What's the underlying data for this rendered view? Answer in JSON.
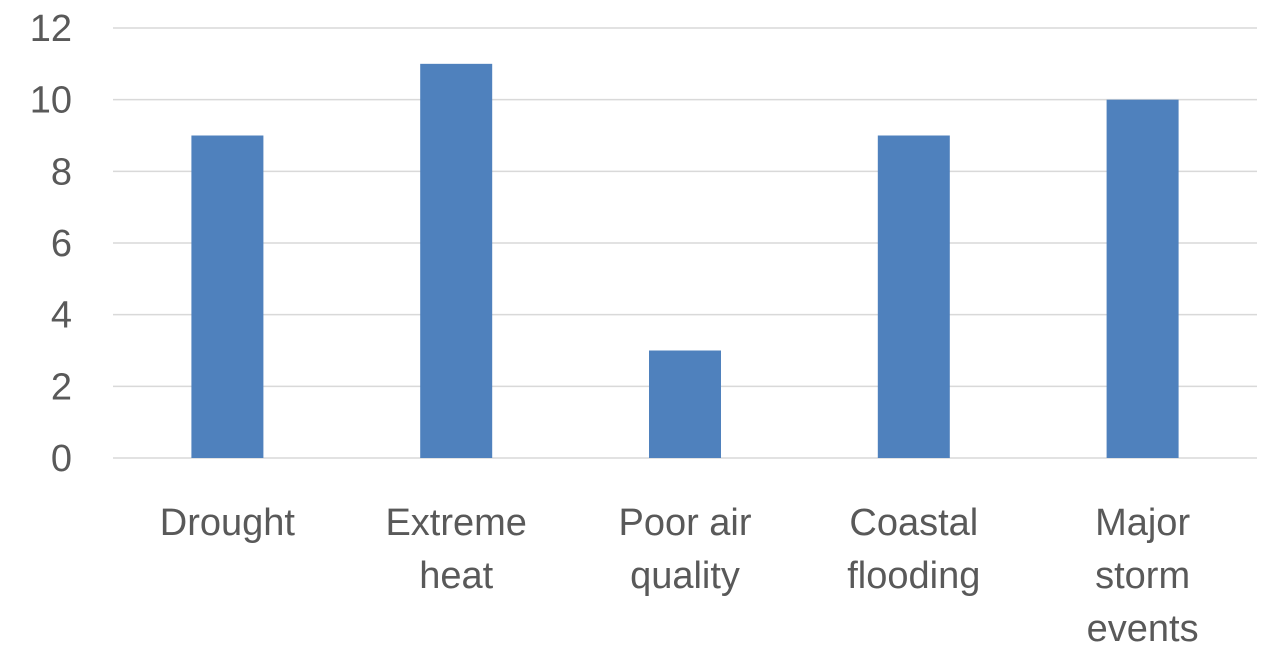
{
  "chart_data": {
    "type": "bar",
    "categories": [
      "Drought",
      "Extreme heat",
      "Poor air quality",
      "Coastal flooding",
      "Major storm events"
    ],
    "category_lines": [
      [
        "Drought"
      ],
      [
        "Extreme",
        "heat"
      ],
      [
        "Poor air",
        "quality"
      ],
      [
        "Coastal",
        "flooding"
      ],
      [
        "Major",
        "storm",
        "events"
      ]
    ],
    "values": [
      9,
      11,
      3,
      9,
      10
    ],
    "ylim": [
      0,
      12
    ],
    "yticks": [
      0,
      2,
      4,
      6,
      8,
      10,
      12
    ],
    "title": "",
    "xlabel": "",
    "ylabel": "",
    "grid": true,
    "legend": "none",
    "colors": {
      "bar": "#4f81bd",
      "grid": "#d9d9d9",
      "text": "#595959"
    }
  }
}
